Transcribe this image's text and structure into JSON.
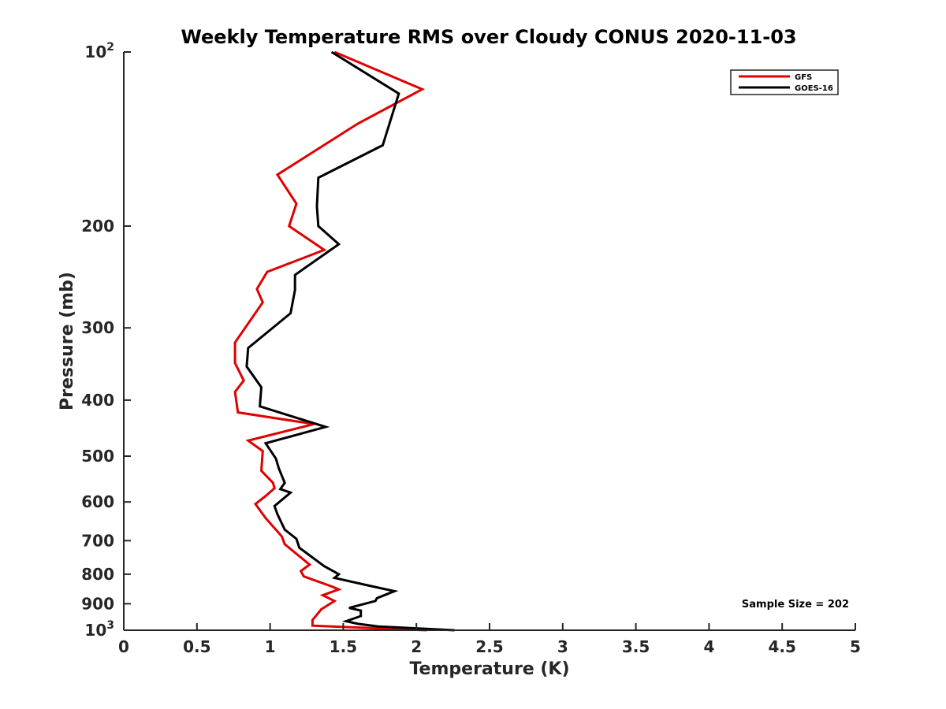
{
  "chart_data": {
    "type": "line",
    "title": "Weekly Temperature RMS over Cloudy CONUS 2020-11-03",
    "xlabel": "Temperature (K)",
    "ylabel": "Pressure (mb)",
    "xlim": [
      0,
      5
    ],
    "ylim": [
      100,
      1000
    ],
    "y_scale": "log",
    "y_reversed": true,
    "x_ticks": [
      "0",
      "0.5",
      "1",
      "1.5",
      "2",
      "2.5",
      "3",
      "3.5",
      "4",
      "4.5",
      "5"
    ],
    "y_ticks": [
      {
        "value": 100,
        "base": "10",
        "exp": "2"
      },
      {
        "value": 200,
        "label": "200"
      },
      {
        "value": 300,
        "label": "300"
      },
      {
        "value": 400,
        "label": "400"
      },
      {
        "value": 500,
        "label": "500"
      },
      {
        "value": 600,
        "label": "600"
      },
      {
        "value": 700,
        "label": "700"
      },
      {
        "value": 800,
        "label": "800"
      },
      {
        "value": 900,
        "label": "900"
      },
      {
        "value": 1000,
        "base": "10",
        "exp": "3"
      }
    ],
    "grid": false,
    "legend_position": "top-right",
    "annotation": "Sample Size = 202",
    "series": [
      {
        "name": "GFS",
        "color": "#e00000",
        "points": [
          [
            1.44,
            100
          ],
          [
            2.04,
            116
          ],
          [
            1.6,
            133
          ],
          [
            1.05,
            163
          ],
          [
            1.18,
            183
          ],
          [
            1.13,
            200
          ],
          [
            1.37,
            220
          ],
          [
            0.98,
            240
          ],
          [
            0.91,
            257
          ],
          [
            0.95,
            271
          ],
          [
            0.76,
            318
          ],
          [
            0.76,
            345
          ],
          [
            0.82,
            370
          ],
          [
            0.76,
            387
          ],
          [
            0.78,
            420
          ],
          [
            1.3,
            440
          ],
          [
            0.85,
            470
          ],
          [
            0.95,
            490
          ],
          [
            0.94,
            530
          ],
          [
            1.02,
            556
          ],
          [
            1.03,
            568
          ],
          [
            0.97,
            586
          ],
          [
            0.9,
            605
          ],
          [
            0.97,
            640
          ],
          [
            1.08,
            688
          ],
          [
            1.1,
            710
          ],
          [
            1.27,
            770
          ],
          [
            1.21,
            790
          ],
          [
            1.23,
            807
          ],
          [
            1.42,
            840
          ],
          [
            1.47,
            850
          ],
          [
            1.36,
            870
          ],
          [
            1.44,
            890
          ],
          [
            1.35,
            920
          ],
          [
            1.29,
            960
          ],
          [
            1.29,
            982
          ],
          [
            1.62,
            990
          ],
          [
            2.07,
            1000
          ]
        ]
      },
      {
        "name": "GOES-16",
        "color": "#000000",
        "points": [
          [
            1.42,
            100
          ],
          [
            1.88,
            118
          ],
          [
            1.77,
            145
          ],
          [
            1.33,
            165
          ],
          [
            1.32,
            185
          ],
          [
            1.33,
            200
          ],
          [
            1.47,
            215
          ],
          [
            1.17,
            243
          ],
          [
            1.17,
            258
          ],
          [
            1.14,
            283
          ],
          [
            0.85,
            325
          ],
          [
            0.84,
            350
          ],
          [
            0.94,
            380
          ],
          [
            0.93,
            410
          ],
          [
            1.38,
            445
          ],
          [
            0.97,
            475
          ],
          [
            1.04,
            505
          ],
          [
            1.06,
            525
          ],
          [
            1.1,
            556
          ],
          [
            1.07,
            570
          ],
          [
            1.14,
            578
          ],
          [
            1.03,
            610
          ],
          [
            1.05,
            630
          ],
          [
            1.1,
            670
          ],
          [
            1.18,
            695
          ],
          [
            1.2,
            720
          ],
          [
            1.37,
            775
          ],
          [
            1.47,
            800
          ],
          [
            1.44,
            812
          ],
          [
            1.7,
            840
          ],
          [
            1.85,
            856
          ],
          [
            1.73,
            880
          ],
          [
            1.72,
            890
          ],
          [
            1.54,
            915
          ],
          [
            1.62,
            925
          ],
          [
            1.62,
            945
          ],
          [
            1.52,
            965
          ],
          [
            1.6,
            975
          ],
          [
            1.74,
            985
          ],
          [
            2.26,
            1000
          ]
        ]
      }
    ]
  }
}
